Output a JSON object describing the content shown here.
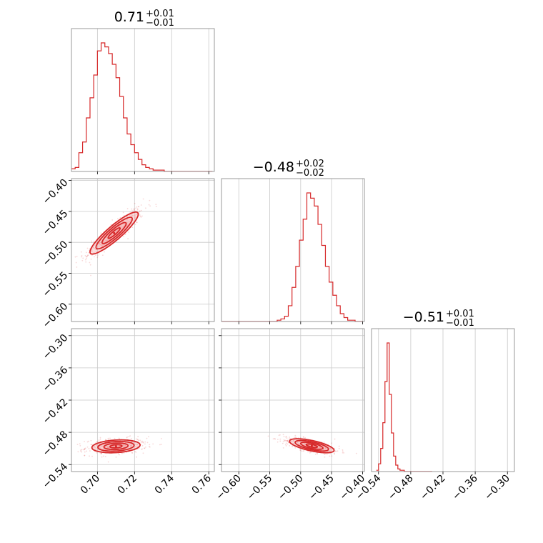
{
  "chart_data": {
    "type": "corner",
    "grid": true,
    "accent_color": "#d62728",
    "fill_color": "#f4a0a0",
    "parameters": [
      {
        "title_value": "0.71",
        "title_plus": "+0.01",
        "title_minus": "−0.01",
        "range": [
          0.686,
          0.763
        ],
        "ticks": [
          0.7,
          0.72,
          0.74,
          0.76
        ],
        "tick_labels": [
          "0.70",
          "0.72",
          "0.74",
          "0.76"
        ]
      },
      {
        "title_value": "−0.48",
        "title_plus": "+0.02",
        "title_minus": "−0.02",
        "range": [
          -0.628,
          -0.397
        ],
        "ticks": [
          -0.6,
          -0.55,
          -0.5,
          -0.45,
          -0.4
        ],
        "tick_labels": [
          "−0.60",
          "−0.55",
          "−0.50",
          "−0.45",
          "−0.40"
        ]
      },
      {
        "title_value": "−0.51",
        "title_plus": "+0.01",
        "title_minus": "−0.01",
        "range": [
          -0.553,
          -0.287
        ],
        "ticks": [
          -0.54,
          -0.48,
          -0.42,
          -0.36,
          -0.3
        ],
        "tick_labels": [
          "−0.54",
          "−0.48",
          "−0.42",
          "−0.36",
          "−0.30"
        ]
      }
    ],
    "marginals": [
      {
        "param": 0,
        "bin_edges": [
          0.686,
          0.688,
          0.69,
          0.692,
          0.694,
          0.696,
          0.698,
          0.7,
          0.702,
          0.704,
          0.706,
          0.708,
          0.71,
          0.712,
          0.714,
          0.716,
          0.718,
          0.72,
          0.722,
          0.724,
          0.726,
          0.728,
          0.73,
          0.732,
          0.734,
          0.736,
          0.738,
          0.74,
          0.742,
          0.744,
          0.746,
          0.748,
          0.75,
          0.752,
          0.754,
          0.756,
          0.758,
          0.76,
          0.762
        ],
        "counts": [
          2,
          3,
          14,
          22,
          40,
          55,
          72,
          90,
          96,
          93,
          88,
          80,
          70,
          56,
          40,
          28,
          20,
          14,
          9,
          5,
          3,
          2,
          1,
          1,
          1,
          0,
          0,
          0,
          0,
          0,
          0,
          0,
          0,
          0,
          0,
          0,
          0,
          0
        ]
      },
      {
        "param": 1,
        "bin_edges": [
          -0.628,
          -0.622,
          -0.616,
          -0.61,
          -0.604,
          -0.598,
          -0.592,
          -0.586,
          -0.58,
          -0.574,
          -0.568,
          -0.562,
          -0.556,
          -0.55,
          -0.544,
          -0.538,
          -0.532,
          -0.526,
          -0.52,
          -0.514,
          -0.508,
          -0.502,
          -0.496,
          -0.49,
          -0.484,
          -0.478,
          -0.472,
          -0.466,
          -0.46,
          -0.454,
          -0.448,
          -0.442,
          -0.436,
          -0.43,
          -0.424,
          -0.418,
          -0.412,
          -0.406,
          -0.4
        ],
        "counts": [
          0,
          0,
          0,
          0,
          0,
          0,
          0,
          0,
          0,
          0,
          0,
          0,
          0,
          0,
          0,
          1,
          2,
          4,
          12,
          26,
          42,
          62,
          78,
          98,
          94,
          88,
          74,
          58,
          42,
          30,
          20,
          12,
          6,
          3,
          1,
          1,
          0,
          0
        ]
      },
      {
        "param": 2,
        "bin_edges": [
          -0.544,
          -0.54,
          -0.536,
          -0.532,
          -0.528,
          -0.524,
          -0.52,
          -0.516,
          -0.512,
          -0.508,
          -0.504,
          -0.5,
          -0.496,
          -0.492,
          -0.488,
          -0.484,
          -0.48,
          -0.476,
          -0.472,
          -0.468,
          -0.464,
          -0.46,
          -0.456,
          -0.452,
          -0.448,
          -0.444,
          -0.44
        ],
        "counts": [
          1,
          6,
          18,
          38,
          70,
          100,
          60,
          30,
          12,
          5,
          2,
          1,
          1,
          0,
          0,
          0,
          0,
          0,
          0,
          0,
          0,
          0,
          0,
          0,
          0,
          0,
          0
        ]
      }
    ],
    "joints": [
      {
        "x_param": 0,
        "y_param": 1,
        "center": [
          0.709,
          -0.485
        ],
        "sigma": [
          0.0065,
          0.017
        ],
        "correlation": 0.9,
        "contour_levels": [
          0.5,
          1.0,
          1.5,
          2.0
        ]
      },
      {
        "x_param": 0,
        "y_param": 2,
        "center": [
          0.71,
          -0.506
        ],
        "sigma": [
          0.0065,
          0.006
        ],
        "correlation": 0.2,
        "contour_levels": [
          0.5,
          1.0,
          1.5,
          2.0
        ]
      },
      {
        "x_param": 1,
        "y_param": 2,
        "center": [
          -0.482,
          -0.505
        ],
        "sigma": [
          0.018,
          0.0065
        ],
        "correlation": -0.65,
        "contour_levels": [
          0.5,
          1.0,
          1.5,
          2.0
        ]
      }
    ]
  }
}
